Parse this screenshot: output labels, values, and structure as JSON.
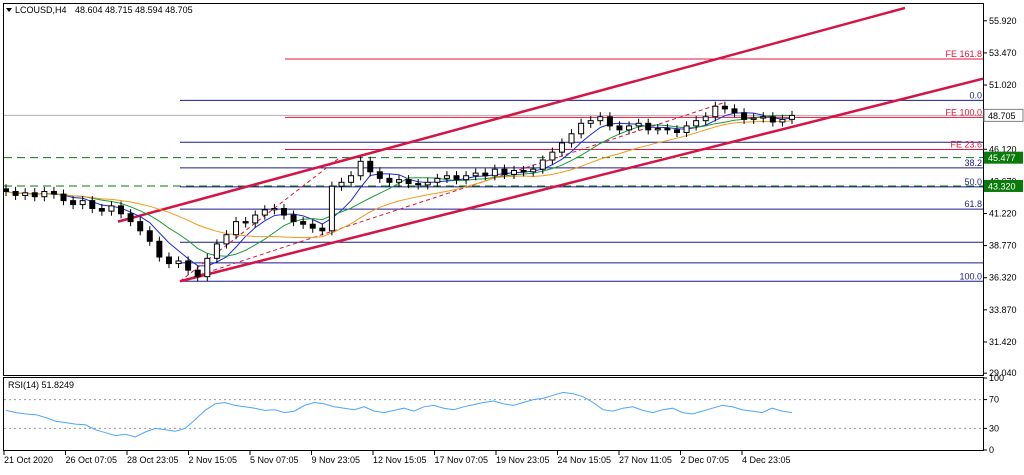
{
  "header": {
    "symbol": "LCOUSD,H4",
    "ohlc": "48.604 48.715 48.594 48.705"
  },
  "rsi_header": "RSI(14) 51.8249",
  "colors": {
    "fib_retrace": "#1b1b8c",
    "fib_ext": "#e0143c",
    "channel": "#d41445",
    "dashed_level": "#0a7a0a",
    "ma_fast": "#1f2ad8",
    "ma_mid": "#1a9a3a",
    "ma_slow": "#f09a1a",
    "rsi_line": "#4da6ff",
    "candle": "#000000"
  },
  "chart_data": {
    "type": "candlestick",
    "y_axis_ticks": [
      "55.920",
      "53.470",
      "51.020",
      "48.570",
      "46.120",
      "43.670",
      "41.220",
      "38.770",
      "36.320",
      "33.870",
      "31.420",
      "29.040"
    ],
    "x_axis_ticks": [
      "21 Oct 2020",
      "26 Oct 07:05",
      "28 Oct 23:05",
      "2 Nov 15:05",
      "5 Nov 07:05",
      "9 Nov 23:05",
      "12 Nov 15:05",
      "17 Nov 07:05",
      "19 Nov 23:05",
      "24 Nov 15:05",
      "27 Nov 11:05",
      "2 Dec 07:05",
      "4 Dec 23:05"
    ],
    "ylim": [
      28.9,
      57.2
    ],
    "current_price": "48.705",
    "horizontal_levels": [
      {
        "value": 45.477,
        "label": "45.477",
        "style": "dashed"
      },
      {
        "value": 43.32,
        "label": "43.320",
        "style": "dashed"
      }
    ],
    "fibonacci_retracement": [
      {
        "label": "0.0",
        "value": 49.85
      },
      {
        "label": "38.2",
        "value": 44.7
      },
      {
        "label": "50.0",
        "value": 43.25
      },
      {
        "label": "61.8",
        "value": 41.55
      },
      {
        "label": "100.0",
        "value": 36.05
      }
    ],
    "fibonacci_extension": [
      {
        "label": "FE 161.8",
        "value": 53.0
      },
      {
        "label": "FE 100.0",
        "value": 48.55
      },
      {
        "label": "FE 23.6",
        "value": 46.1
      }
    ],
    "extra_retrace_lines": [
      46.65,
      39.03,
      37.45
    ],
    "close_series": [
      42.9,
      42.6,
      42.8,
      42.5,
      42.9,
      42.7,
      42.2,
      41.9,
      42.2,
      41.6,
      41.4,
      41.8,
      41.2,
      40.6,
      39.9,
      39.1,
      37.9,
      37.4,
      37.6,
      36.9,
      36.4,
      37.8,
      38.9,
      39.6,
      40.6,
      40.5,
      41.1,
      41.5,
      41.6,
      41.1,
      40.6,
      40.4,
      40.1,
      39.9,
      43.3,
      43.6,
      44.1,
      45.2,
      44.4,
      43.9,
      43.6,
      43.8,
      43.5,
      43.4,
      43.6,
      43.9,
      44.1,
      43.8,
      44.1,
      44.3,
      44.1,
      44.6,
      44.2,
      44.5,
      44.4,
      44.6,
      45.3,
      45.9,
      46.6,
      47.3,
      48.1,
      48.3,
      48.6,
      47.9,
      47.6,
      47.9,
      48.1,
      47.6,
      47.7,
      47.6,
      47.4,
      47.9,
      48.3,
      48.6,
      49.4,
      49.2,
      48.9,
      48.4,
      48.5,
      48.6,
      48.2,
      48.4,
      48.7
    ],
    "rsi": {
      "label": "RSI(14) 51.8249",
      "last_value": 51.8249,
      "levels": [
        70,
        30
      ],
      "scale_labels": [
        "100",
        "70",
        "30",
        "0"
      ],
      "values": [
        55,
        52,
        50,
        49,
        45,
        40,
        38,
        36,
        35,
        28,
        24,
        20,
        22,
        18,
        25,
        30,
        28,
        26,
        30,
        42,
        55,
        64,
        66,
        62,
        60,
        58,
        55,
        56,
        52,
        54,
        62,
        66,
        64,
        60,
        58,
        56,
        60,
        54,
        52,
        55,
        58,
        54,
        60,
        62,
        58,
        56,
        60,
        63,
        66,
        68,
        64,
        62,
        66,
        70,
        72,
        76,
        80,
        78,
        74,
        66,
        56,
        54,
        58,
        60,
        55,
        52,
        56,
        58,
        52,
        50,
        54,
        58,
        62,
        60,
        56,
        54,
        52,
        58,
        54,
        52
      ]
    }
  }
}
